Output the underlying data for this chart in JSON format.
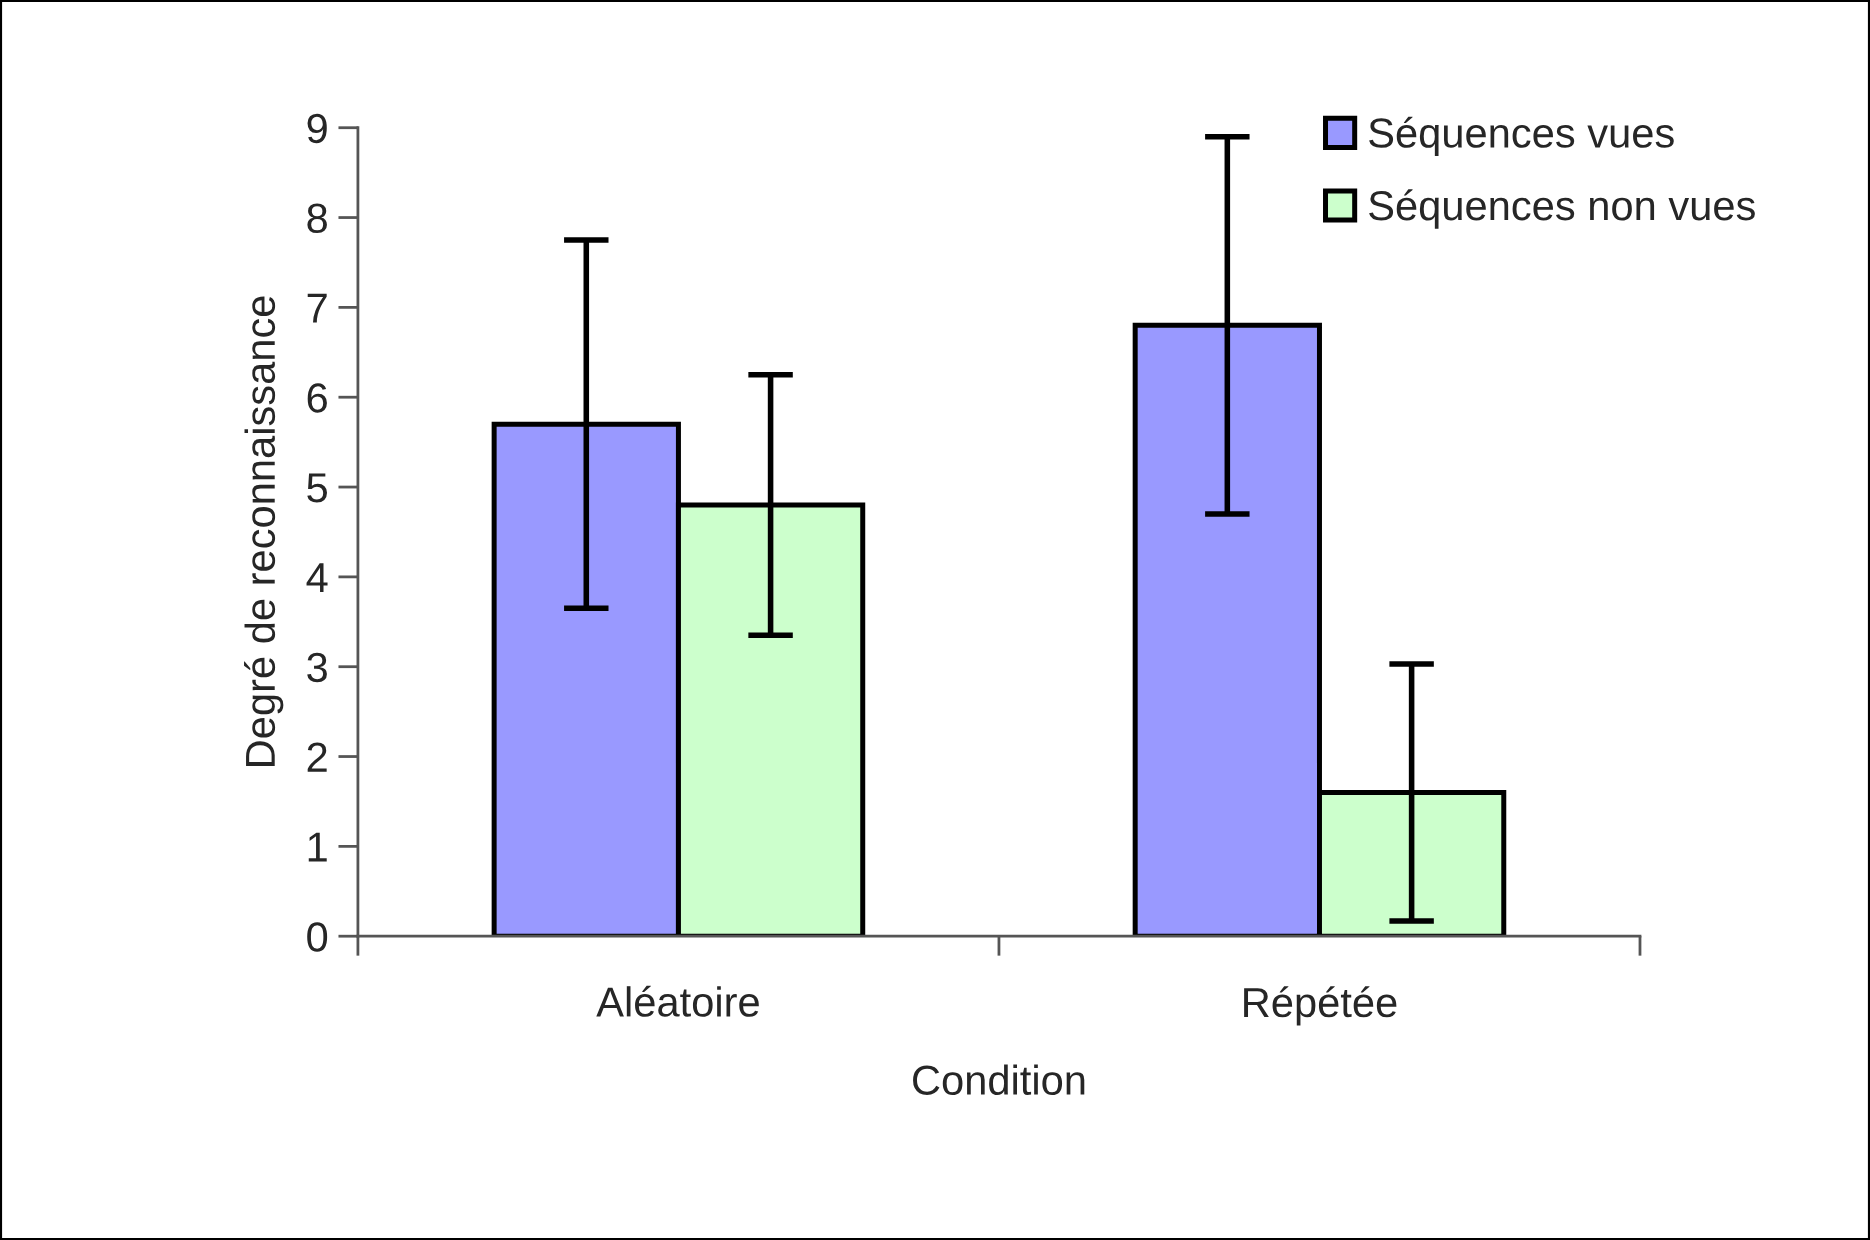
{
  "chart_data": {
    "type": "bar",
    "xlabel": "Condition",
    "ylabel": "Degré de reconnaissance",
    "categories": [
      "Aléatoire",
      "Répétée"
    ],
    "series": [
      {
        "name": "Séquences vues",
        "color": "#9999ff",
        "values": [
          5.7,
          6.8
        ],
        "errors": [
          2.05,
          2.1
        ]
      },
      {
        "name": "Séquences non vues",
        "color": "#ccffcc",
        "values": [
          4.8,
          1.6
        ],
        "errors": [
          1.45,
          1.43
        ]
      }
    ],
    "ylim": [
      0,
      9
    ],
    "yticks": [
      0,
      1,
      2,
      3,
      4,
      5,
      6,
      7,
      8,
      9
    ],
    "grid": false,
    "legend": "top right"
  }
}
